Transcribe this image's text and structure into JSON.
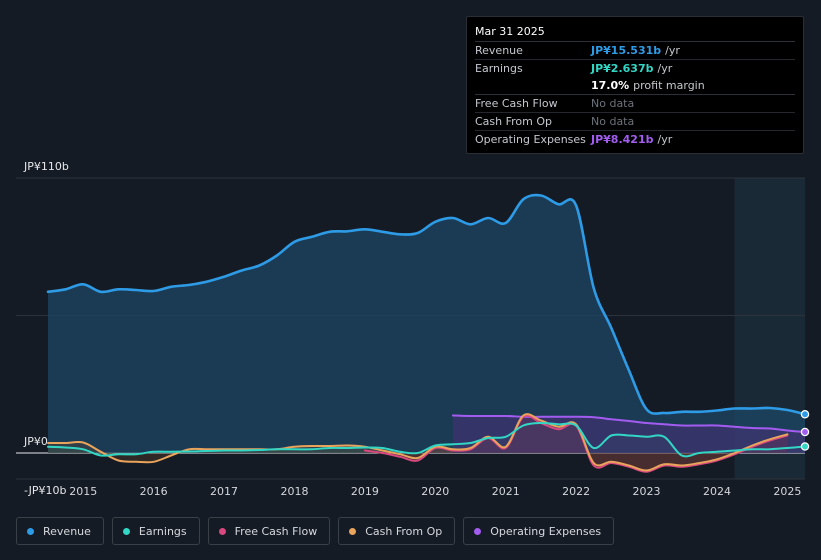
{
  "tooltip": {
    "date": "Mar 31 2025",
    "rows": [
      {
        "label": "Revenue",
        "value": "JP¥15.531b",
        "unit": "/yr",
        "color": "#2e9be6"
      },
      {
        "label": "Earnings",
        "value": "JP¥2.637b",
        "unit": "/yr",
        "color": "#32d6c4"
      },
      {
        "label": "",
        "value": "17.0%",
        "unit": "profit margin",
        "color": "#ffffff"
      },
      {
        "label": "Free Cash Flow",
        "value": "No data",
        "unit": "",
        "color": "#6c727a"
      },
      {
        "label": "Cash From Op",
        "value": "No data",
        "unit": "",
        "color": "#6c727a"
      },
      {
        "label": "Operating Expenses",
        "value": "JP¥8.421b",
        "unit": "/yr",
        "color": "#a35cf0"
      }
    ]
  },
  "legend": [
    {
      "label": "Revenue",
      "color": "#2e9be6"
    },
    {
      "label": "Earnings",
      "color": "#32d6c4"
    },
    {
      "label": "Free Cash Flow",
      "color": "#d9487f"
    },
    {
      "label": "Cash From Op",
      "color": "#e9a45c"
    },
    {
      "label": "Operating Expenses",
      "color": "#a35cf0"
    }
  ],
  "chart_data": {
    "type": "area",
    "title": "",
    "xlabel": "",
    "ylabel": "",
    "ylim": [
      -10,
      110
    ],
    "xlim": [
      2014.5,
      2025.25
    ],
    "y_tick_labels": [
      "JP¥110b",
      "JP¥0",
      "-JP¥10b"
    ],
    "x_tick_labels": [
      "2015",
      "2016",
      "2017",
      "2018",
      "2019",
      "2020",
      "2021",
      "2022",
      "2023",
      "2024",
      "2025"
    ],
    "x_ticks": [
      2015,
      2016,
      2017,
      2018,
      2019,
      2020,
      2021,
      2022,
      2023,
      2024,
      2025
    ],
    "forecast_shade_start": 2024.25,
    "series": [
      {
        "name": "Revenue",
        "color": "#2e9be6",
        "points": [
          [
            2014.5,
            64.5
          ],
          [
            2014.75,
            65.5
          ],
          [
            2015.0,
            67.5
          ],
          [
            2015.25,
            64.5
          ],
          [
            2015.5,
            65.5
          ],
          [
            2015.75,
            65.2
          ],
          [
            2016.0,
            64.8
          ],
          [
            2016.25,
            66.5
          ],
          [
            2016.5,
            67.2
          ],
          [
            2016.75,
            68.5
          ],
          [
            2017.0,
            70.5
          ],
          [
            2017.25,
            73.0
          ],
          [
            2017.5,
            75.0
          ],
          [
            2017.75,
            79.0
          ],
          [
            2018.0,
            84.5
          ],
          [
            2018.25,
            86.5
          ],
          [
            2018.5,
            88.5
          ],
          [
            2018.75,
            88.7
          ],
          [
            2019.0,
            89.5
          ],
          [
            2019.25,
            88.5
          ],
          [
            2019.5,
            87.5
          ],
          [
            2019.75,
            88.0
          ],
          [
            2020.0,
            92.5
          ],
          [
            2020.25,
            94.0
          ],
          [
            2020.5,
            91.5
          ],
          [
            2020.75,
            94.0
          ],
          [
            2021.0,
            92.0
          ],
          [
            2021.25,
            101.5
          ],
          [
            2021.5,
            103.0
          ],
          [
            2021.75,
            99.5
          ],
          [
            2022.0,
            99.0
          ],
          [
            2022.25,
            66.0
          ],
          [
            2022.5,
            50.0
          ],
          [
            2022.75,
            33.0
          ],
          [
            2023.0,
            17.5
          ],
          [
            2023.25,
            16.0
          ],
          [
            2023.5,
            16.5
          ],
          [
            2023.75,
            16.5
          ],
          [
            2024.0,
            17.0
          ],
          [
            2024.25,
            17.8
          ],
          [
            2024.5,
            17.8
          ],
          [
            2024.75,
            18.0
          ],
          [
            2025.0,
            17.2
          ],
          [
            2025.25,
            15.5
          ]
        ]
      },
      {
        "name": "Earnings",
        "color": "#32d6c4",
        "points": [
          [
            2014.5,
            2.5
          ],
          [
            2014.75,
            2.2
          ],
          [
            2015.0,
            1.5
          ],
          [
            2015.25,
            -1.0
          ],
          [
            2015.5,
            -0.5
          ],
          [
            2015.75,
            -0.5
          ],
          [
            2016.0,
            0.5
          ],
          [
            2016.25,
            0.5
          ],
          [
            2016.5,
            0.6
          ],
          [
            2016.75,
            0.8
          ],
          [
            2017.0,
            1.0
          ],
          [
            2017.25,
            1.0
          ],
          [
            2017.5,
            1.2
          ],
          [
            2017.75,
            1.5
          ],
          [
            2018.0,
            1.5
          ],
          [
            2018.25,
            1.5
          ],
          [
            2018.5,
            2.0
          ],
          [
            2018.75,
            2.0
          ],
          [
            2019.0,
            2.2
          ],
          [
            2019.25,
            2.0
          ],
          [
            2019.5,
            0.5
          ],
          [
            2019.75,
            0.0
          ],
          [
            2020.0,
            3.0
          ],
          [
            2020.25,
            3.5
          ],
          [
            2020.5,
            4.0
          ],
          [
            2020.75,
            6.0
          ],
          [
            2021.0,
            6.5
          ],
          [
            2021.25,
            11.0
          ],
          [
            2021.5,
            12.0
          ],
          [
            2021.75,
            11.5
          ],
          [
            2022.0,
            11.0
          ],
          [
            2022.25,
            2.0
          ],
          [
            2022.5,
            7.0
          ],
          [
            2022.75,
            7.0
          ],
          [
            2023.0,
            6.5
          ],
          [
            2023.25,
            6.5
          ],
          [
            2023.5,
            -1.0
          ],
          [
            2023.75,
            0.0
          ],
          [
            2024.0,
            0.5
          ],
          [
            2024.25,
            1.0
          ],
          [
            2024.5,
            1.5
          ],
          [
            2024.75,
            1.5
          ],
          [
            2025.0,
            2.0
          ],
          [
            2025.25,
            2.6
          ]
        ]
      },
      {
        "name": "Free Cash Flow",
        "color": "#d9487f",
        "points": [
          [
            2019.0,
            1.0
          ],
          [
            2019.25,
            0.0
          ],
          [
            2019.5,
            -1.5
          ],
          [
            2019.75,
            -3.0
          ],
          [
            2020.0,
            2.0
          ],
          [
            2020.25,
            1.0
          ],
          [
            2020.5,
            1.5
          ],
          [
            2020.75,
            6.0
          ],
          [
            2021.0,
            2.0
          ],
          [
            2021.25,
            14.5
          ],
          [
            2021.5,
            12.0
          ],
          [
            2021.75,
            9.5
          ],
          [
            2022.0,
            11.0
          ],
          [
            2022.25,
            -5.0
          ],
          [
            2022.5,
            -4.0
          ],
          [
            2022.75,
            -5.5
          ],
          [
            2023.0,
            -7.5
          ],
          [
            2023.25,
            -5.0
          ],
          [
            2023.5,
            -5.5
          ],
          [
            2023.75,
            -4.5
          ],
          [
            2024.0,
            -3.0
          ],
          [
            2024.25,
            -0.5
          ],
          [
            2024.5,
            2.5
          ],
          [
            2024.75,
            5.0
          ],
          [
            2025.0,
            7.0
          ]
        ]
      },
      {
        "name": "Cash From Op",
        "color": "#e9a45c",
        "points": [
          [
            2014.5,
            4.0
          ],
          [
            2014.75,
            4.0
          ],
          [
            2015.0,
            4.2
          ],
          [
            2015.25,
            0.5
          ],
          [
            2015.5,
            -3.0
          ],
          [
            2015.75,
            -3.5
          ],
          [
            2016.0,
            -3.5
          ],
          [
            2016.25,
            -1.0
          ],
          [
            2016.5,
            1.5
          ],
          [
            2016.75,
            1.5
          ],
          [
            2017.0,
            1.5
          ],
          [
            2017.25,
            1.5
          ],
          [
            2017.5,
            1.5
          ],
          [
            2017.75,
            1.5
          ],
          [
            2018.0,
            2.5
          ],
          [
            2018.25,
            2.8
          ],
          [
            2018.5,
            2.8
          ],
          [
            2018.75,
            3.0
          ],
          [
            2019.0,
            2.5
          ],
          [
            2019.25,
            1.0
          ],
          [
            2019.5,
            -0.5
          ],
          [
            2019.75,
            -2.0
          ],
          [
            2020.0,
            2.5
          ],
          [
            2020.25,
            1.5
          ],
          [
            2020.5,
            2.0
          ],
          [
            2020.75,
            6.5
          ],
          [
            2021.0,
            2.5
          ],
          [
            2021.25,
            15.0
          ],
          [
            2021.5,
            13.0
          ],
          [
            2021.75,
            10.5
          ],
          [
            2022.0,
            11.5
          ],
          [
            2022.25,
            -4.0
          ],
          [
            2022.5,
            -3.5
          ],
          [
            2022.75,
            -5.0
          ],
          [
            2023.0,
            -7.0
          ],
          [
            2023.25,
            -4.5
          ],
          [
            2023.5,
            -5.0
          ],
          [
            2023.75,
            -4.0
          ],
          [
            2024.0,
            -2.5
          ],
          [
            2024.25,
            0.0
          ],
          [
            2024.5,
            3.0
          ],
          [
            2024.75,
            5.5
          ],
          [
            2025.0,
            7.5
          ]
        ]
      },
      {
        "name": "Operating Expenses",
        "color": "#a35cf0",
        "points": [
          [
            2020.25,
            15.0
          ],
          [
            2020.5,
            14.8
          ],
          [
            2020.75,
            14.8
          ],
          [
            2021.0,
            14.8
          ],
          [
            2021.25,
            14.5
          ],
          [
            2021.5,
            14.5
          ],
          [
            2021.75,
            14.5
          ],
          [
            2022.0,
            14.5
          ],
          [
            2022.25,
            14.3
          ],
          [
            2022.5,
            13.5
          ],
          [
            2022.75,
            12.8
          ],
          [
            2023.0,
            12.0
          ],
          [
            2023.25,
            11.5
          ],
          [
            2023.5,
            11.0
          ],
          [
            2023.75,
            11.0
          ],
          [
            2024.0,
            11.0
          ],
          [
            2024.25,
            10.5
          ],
          [
            2024.5,
            10.0
          ],
          [
            2024.75,
            9.8
          ],
          [
            2025.0,
            9.0
          ],
          [
            2025.25,
            8.4
          ]
        ]
      }
    ]
  }
}
